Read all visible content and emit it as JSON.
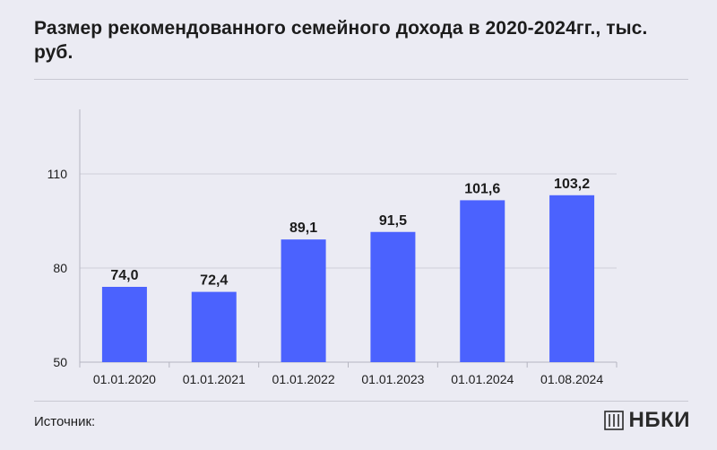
{
  "header": {
    "title": "Размер рекомендованного семейного дохода в 2020-2024гг., тыс. руб."
  },
  "footer": {
    "source_label": "Источник:",
    "logo_text": "НБКИ"
  },
  "colors": {
    "background": "#ebebf3",
    "bar": "#4b62fe",
    "grid": "#cfcfd9",
    "axis": "#b5b5c0",
    "text": "#1c1c1c"
  },
  "chart_data": {
    "type": "bar",
    "categories": [
      "01.01.2020",
      "01.01.2021",
      "01.01.2022",
      "01.01.2023",
      "01.01.2024",
      "01.08.2024"
    ],
    "values": [
      74.0,
      72.4,
      89.1,
      91.5,
      101.6,
      103.2
    ],
    "value_labels": [
      "74,0",
      "72,4",
      "89,1",
      "91,5",
      "101,6",
      "103,2"
    ],
    "y_ticks": [
      50,
      80,
      110
    ],
    "y_tick_labels": [
      "50",
      "80",
      "110"
    ],
    "ylim": [
      50,
      130
    ],
    "grid": true,
    "legend": "none"
  }
}
